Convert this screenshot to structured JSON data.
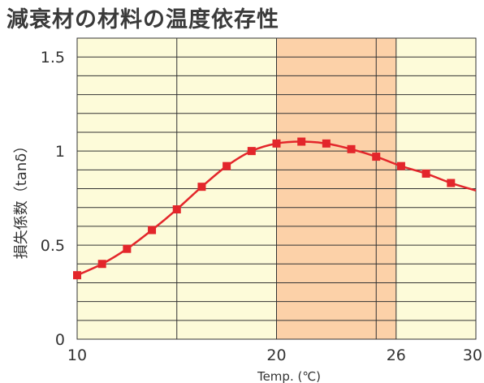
{
  "chart_data": {
    "type": "line",
    "title": "減衰材の材料の温度依存性",
    "xlabel": "Temp. (℃)",
    "ylabel": "損失係数（tanδ）",
    "xlim": [
      10,
      30
    ],
    "ylim": [
      0,
      1.6
    ],
    "x_ticks": [
      "10",
      "20",
      "26",
      "30"
    ],
    "x_tick_values": [
      10,
      20,
      26,
      30
    ],
    "y_ticks": [
      "0",
      "0.5",
      "1",
      "1.5"
    ],
    "y_tick_values": [
      0,
      0.5,
      1,
      1.5
    ],
    "y_gridline_step": 0.1,
    "highlight_range": [
      20,
      26
    ],
    "highlight_divider": 25,
    "colors": {
      "background": "#fdfbd9",
      "highlight": "#fcd1a8",
      "line": "#e3262b",
      "marker": "#e3262b",
      "grid": "#333333"
    },
    "series": [
      {
        "x": [
          10,
          11.25,
          12.5,
          13.75,
          15,
          16.25,
          17.5,
          18.75,
          20,
          21.25,
          22.5,
          23.75,
          25,
          26.25,
          27.5,
          28.75
        ],
        "values": [
          0.34,
          0.4,
          0.48,
          0.58,
          0.69,
          0.81,
          0.92,
          1.0,
          1.04,
          1.05,
          1.04,
          1.01,
          0.97,
          0.92,
          0.88,
          0.83
        ]
      }
    ],
    "line_end": {
      "x": 30,
      "y": 0.79
    }
  }
}
